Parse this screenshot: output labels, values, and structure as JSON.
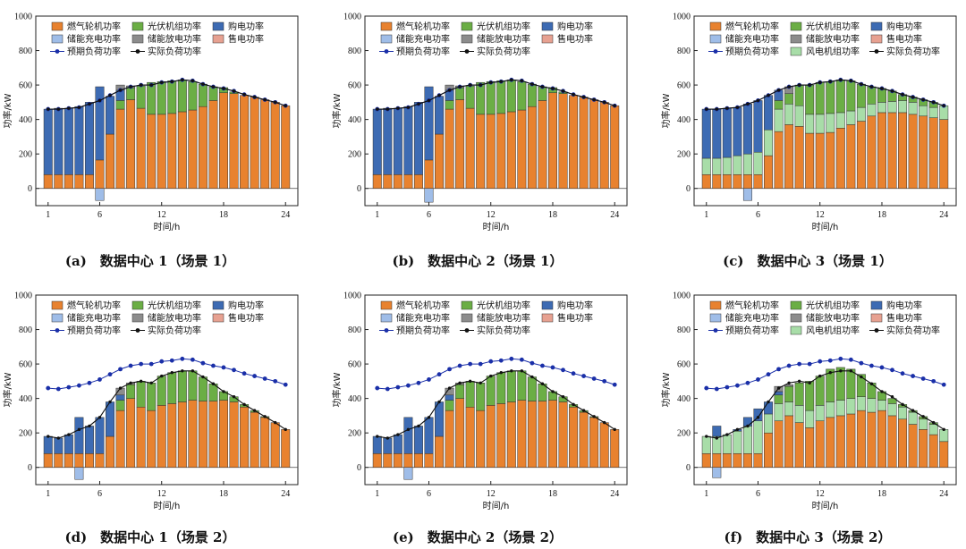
{
  "colors": {
    "gas": "#E8822F",
    "pv": "#6BAE45",
    "buy": "#3D6BB3",
    "charge": "#9FBDE8",
    "discharge": "#8C8C8C",
    "sell": "#E7A191",
    "wind": "#A8DDA8",
    "pred": "#1A2FA8",
    "actual": "#111111"
  },
  "chart_data": [
    {
      "id": "a",
      "type": "stacked-bar-line",
      "title": "(a)　数据中心 1（场景 1）",
      "xlabel": "时间/h",
      "ylabel": "功率/kW",
      "xticks": [
        "1",
        "6",
        "12",
        "18",
        "24"
      ],
      "yticks": [
        "0",
        "200",
        "400",
        "600",
        "800",
        "1000"
      ],
      "ylim": [
        -100,
        1000
      ],
      "legend": [
        "燃气轮机功率",
        "光伏机组功率",
        "购电功率",
        "储能充电功率",
        "储能放电功率",
        "售电功率",
        "预期负荷功率",
        "实际负荷功率"
      ],
      "gas": [
        80,
        80,
        80,
        80,
        80,
        165,
        315,
        460,
        515,
        465,
        430,
        430,
        435,
        445,
        455,
        475,
        510,
        555,
        550,
        540,
        530,
        515,
        500,
        480
      ],
      "pv": [
        0,
        0,
        0,
        0,
        0,
        0,
        0,
        50,
        70,
        130,
        185,
        190,
        190,
        185,
        165,
        130,
        80,
        30,
        10,
        0,
        0,
        0,
        0,
        0
      ],
      "buy": [
        380,
        385,
        385,
        395,
        420,
        425,
        220,
        60,
        0,
        0,
        0,
        0,
        0,
        0,
        0,
        0,
        0,
        0,
        0,
        0,
        0,
        0,
        0,
        0
      ],
      "discharge": [
        0,
        0,
        0,
        0,
        0,
        0,
        0,
        30,
        10,
        0,
        0,
        0,
        0,
        0,
        0,
        0,
        0,
        0,
        0,
        0,
        0,
        0,
        0,
        0
      ],
      "charge": [
        0,
        0,
        0,
        0,
        0,
        -70,
        0,
        0,
        0,
        0,
        0,
        0,
        0,
        0,
        0,
        0,
        0,
        0,
        0,
        0,
        0,
        0,
        0,
        0
      ],
      "predicted": [
        460,
        460,
        465,
        470,
        490,
        510,
        540,
        570,
        590,
        600,
        600,
        615,
        620,
        630,
        625,
        605,
        590,
        580,
        565,
        545,
        530,
        515,
        500,
        480
      ],
      "actual": [
        460,
        460,
        465,
        470,
        490,
        510,
        540,
        570,
        590,
        600,
        600,
        615,
        620,
        630,
        625,
        605,
        590,
        580,
        565,
        545,
        530,
        515,
        500,
        480
      ]
    },
    {
      "id": "b",
      "type": "stacked-bar-line",
      "title": "(b)　数据中心 2（场景 1）",
      "xlabel": "时间/h",
      "ylabel": "功率/kW",
      "xticks": [
        "1",
        "6",
        "12",
        "18",
        "24"
      ],
      "yticks": [
        "0",
        "200",
        "400",
        "600",
        "800",
        "1000"
      ],
      "ylim": [
        -100,
        1000
      ],
      "legend": [
        "燃气轮机功率",
        "光伏机组功率",
        "购电功率",
        "储能充电功率",
        "储能放电功率",
        "售电功率",
        "预期负荷功率",
        "实际负荷功率"
      ],
      "gas": [
        80,
        80,
        80,
        80,
        80,
        165,
        315,
        460,
        515,
        465,
        430,
        430,
        435,
        445,
        455,
        475,
        510,
        555,
        550,
        540,
        530,
        515,
        500,
        480
      ],
      "pv": [
        0,
        0,
        0,
        0,
        0,
        0,
        0,
        50,
        70,
        130,
        185,
        190,
        190,
        185,
        165,
        130,
        80,
        30,
        10,
        0,
        0,
        0,
        0,
        0
      ],
      "buy": [
        380,
        385,
        385,
        395,
        420,
        425,
        220,
        60,
        0,
        0,
        0,
        0,
        0,
        0,
        0,
        0,
        0,
        0,
        0,
        0,
        0,
        0,
        0,
        0
      ],
      "discharge": [
        0,
        0,
        0,
        0,
        0,
        0,
        0,
        30,
        10,
        0,
        0,
        0,
        0,
        0,
        0,
        0,
        0,
        0,
        0,
        0,
        0,
        0,
        0,
        0
      ],
      "charge": [
        0,
        0,
        0,
        0,
        0,
        -80,
        0,
        0,
        0,
        0,
        0,
        0,
        0,
        0,
        0,
        0,
        0,
        0,
        0,
        0,
        0,
        0,
        0,
        0
      ],
      "predicted": [
        460,
        460,
        465,
        470,
        490,
        510,
        540,
        570,
        590,
        600,
        600,
        615,
        620,
        630,
        625,
        605,
        590,
        580,
        565,
        545,
        530,
        515,
        500,
        480
      ],
      "actual": [
        460,
        460,
        465,
        470,
        490,
        510,
        540,
        570,
        590,
        600,
        600,
        615,
        620,
        630,
        625,
        605,
        590,
        580,
        565,
        545,
        530,
        515,
        500,
        480
      ]
    },
    {
      "id": "c",
      "type": "stacked-bar-line",
      "title": "(c)　数据中心 3（场景 1）",
      "xlabel": "时间/h",
      "ylabel": "功率/kW",
      "xticks": [
        "1",
        "6",
        "12",
        "18",
        "24"
      ],
      "yticks": [
        "0",
        "200",
        "400",
        "600",
        "800",
        "1000"
      ],
      "ylim": [
        -100,
        1000
      ],
      "legend": [
        "燃气轮机功率",
        "光伏机组功率",
        "购电功率",
        "储能充电功率",
        "储能放电功率",
        "售电功率",
        "预期负荷功率",
        "风电机组功率",
        "实际负荷功率"
      ],
      "gas": [
        80,
        80,
        80,
        80,
        80,
        80,
        190,
        330,
        370,
        360,
        320,
        320,
        325,
        350,
        370,
        390,
        420,
        440,
        440,
        440,
        430,
        420,
        410,
        400
      ],
      "wind": [
        95,
        95,
        100,
        110,
        120,
        130,
        150,
        130,
        120,
        120,
        110,
        110,
        110,
        90,
        80,
        80,
        70,
        60,
        65,
        70,
        70,
        60,
        60,
        80
      ],
      "pv": [
        0,
        0,
        0,
        0,
        0,
        0,
        0,
        50,
        60,
        120,
        170,
        185,
        185,
        190,
        175,
        135,
        100,
        80,
        60,
        35,
        30,
        35,
        30,
        0
      ],
      "buy": [
        285,
        285,
        285,
        280,
        290,
        300,
        200,
        60,
        0,
        0,
        0,
        0,
        0,
        0,
        0,
        0,
        0,
        0,
        0,
        0,
        0,
        0,
        0,
        0
      ],
      "discharge": [
        0,
        0,
        0,
        0,
        0,
        0,
        0,
        0,
        40,
        0,
        0,
        0,
        0,
        0,
        0,
        0,
        0,
        0,
        0,
        0,
        0,
        0,
        0,
        0
      ],
      "charge": [
        0,
        0,
        0,
        0,
        -70,
        0,
        0,
        0,
        0,
        0,
        0,
        0,
        0,
        0,
        0,
        0,
        0,
        0,
        0,
        0,
        0,
        0,
        0,
        0
      ],
      "predicted": [
        460,
        460,
        465,
        470,
        490,
        510,
        540,
        570,
        590,
        600,
        600,
        615,
        620,
        630,
        625,
        605,
        590,
        580,
        565,
        545,
        530,
        515,
        500,
        480
      ],
      "actual": [
        460,
        460,
        465,
        470,
        490,
        510,
        540,
        570,
        590,
        600,
        600,
        615,
        620,
        630,
        625,
        605,
        590,
        580,
        565,
        545,
        530,
        515,
        500,
        480
      ]
    },
    {
      "id": "d",
      "type": "stacked-bar-line",
      "title": "(d)　数据中心 1（场景 2）",
      "xlabel": "时间/h",
      "ylabel": "功率/kW",
      "xticks": [
        "1",
        "6",
        "12",
        "18",
        "24"
      ],
      "yticks": [
        "0",
        "200",
        "400",
        "600",
        "800",
        "1000"
      ],
      "ylim": [
        -100,
        1000
      ],
      "legend": [
        "燃气轮机功率",
        "光伏机组功率",
        "购电功率",
        "储能充电功率",
        "储能放电功率",
        "售电功率",
        "预期负荷功率",
        "实际负荷功率"
      ],
      "gas": [
        80,
        80,
        80,
        80,
        80,
        80,
        180,
        330,
        400,
        350,
        330,
        360,
        370,
        380,
        390,
        385,
        385,
        390,
        380,
        350,
        320,
        290,
        260,
        220
      ],
      "pv": [
        0,
        0,
        0,
        0,
        0,
        0,
        0,
        60,
        80,
        150,
        160,
        170,
        180,
        180,
        170,
        140,
        100,
        50,
        30,
        15,
        10,
        5,
        0,
        0
      ],
      "buy": [
        100,
        90,
        110,
        210,
        160,
        210,
        200,
        30,
        0,
        0,
        0,
        0,
        0,
        0,
        0,
        0,
        0,
        0,
        0,
        0,
        0,
        0,
        0,
        0
      ],
      "discharge": [
        0,
        0,
        0,
        0,
        0,
        0,
        0,
        40,
        10,
        0,
        0,
        0,
        0,
        0,
        0,
        0,
        0,
        0,
        0,
        0,
        0,
        0,
        0,
        0
      ],
      "charge": [
        0,
        0,
        0,
        -70,
        0,
        0,
        0,
        0,
        0,
        0,
        0,
        0,
        0,
        0,
        0,
        0,
        0,
        0,
        0,
        0,
        0,
        0,
        0,
        0
      ],
      "predicted": [
        460,
        455,
        465,
        475,
        490,
        510,
        540,
        570,
        590,
        600,
        600,
        615,
        620,
        630,
        625,
        605,
        590,
        580,
        565,
        545,
        530,
        515,
        500,
        480
      ],
      "actual": [
        180,
        170,
        190,
        220,
        240,
        290,
        380,
        460,
        490,
        500,
        490,
        530,
        550,
        560,
        560,
        525,
        485,
        440,
        410,
        365,
        330,
        295,
        260,
        220
      ]
    },
    {
      "id": "e",
      "type": "stacked-bar-line",
      "title": "(e)　数据中心 2（场景 2）",
      "xlabel": "时间/h",
      "ylabel": "功率/kW",
      "xticks": [
        "1",
        "6",
        "12",
        "18",
        "24"
      ],
      "yticks": [
        "0",
        "200",
        "400",
        "600",
        "800",
        "1000"
      ],
      "ylim": [
        -100,
        1000
      ],
      "legend": [
        "燃气轮机功率",
        "光伏机组功率",
        "购电功率",
        "储能充电功率",
        "储能放电功率",
        "售电功率",
        "预期负荷功率",
        "实际负荷功率"
      ],
      "gas": [
        80,
        80,
        80,
        80,
        80,
        80,
        180,
        330,
        400,
        350,
        330,
        360,
        370,
        380,
        390,
        385,
        385,
        390,
        380,
        350,
        320,
        290,
        260,
        220
      ],
      "pv": [
        0,
        0,
        0,
        0,
        0,
        0,
        0,
        60,
        80,
        150,
        160,
        170,
        180,
        180,
        170,
        140,
        100,
        50,
        30,
        15,
        10,
        5,
        0,
        0
      ],
      "buy": [
        100,
        90,
        110,
        210,
        160,
        210,
        200,
        30,
        0,
        0,
        0,
        0,
        0,
        0,
        0,
        0,
        0,
        0,
        0,
        0,
        0,
        0,
        0,
        0
      ],
      "discharge": [
        0,
        0,
        0,
        0,
        0,
        0,
        0,
        40,
        10,
        0,
        0,
        0,
        0,
        0,
        0,
        0,
        0,
        0,
        0,
        0,
        0,
        0,
        0,
        0
      ],
      "charge": [
        0,
        0,
        0,
        -70,
        0,
        0,
        0,
        0,
        0,
        0,
        0,
        0,
        0,
        0,
        0,
        0,
        0,
        0,
        0,
        0,
        0,
        0,
        0,
        0
      ],
      "predicted": [
        460,
        455,
        465,
        475,
        490,
        510,
        540,
        570,
        590,
        600,
        600,
        615,
        620,
        630,
        625,
        605,
        590,
        580,
        565,
        545,
        530,
        515,
        500,
        480
      ],
      "actual": [
        180,
        170,
        190,
        220,
        240,
        290,
        380,
        460,
        490,
        500,
        490,
        530,
        550,
        560,
        560,
        525,
        485,
        440,
        410,
        365,
        330,
        295,
        260,
        220
      ]
    },
    {
      "id": "f",
      "type": "stacked-bar-line",
      "title": "(f)　数据中心 3（场景 2）",
      "xlabel": "时间/h",
      "ylabel": "功率/kW",
      "xticks": [
        "1",
        "6",
        "12",
        "18",
        "24"
      ],
      "yticks": [
        "0",
        "200",
        "400",
        "600",
        "800",
        "1000"
      ],
      "ylim": [
        -100,
        1000
      ],
      "legend": [
        "燃气轮机功率",
        "光伏机组功率",
        "购电功率",
        "储能充电功率",
        "储能放电功率",
        "售电功率",
        "预期负荷功率",
        "风电机组功率",
        "实际负荷功率"
      ],
      "gas": [
        80,
        80,
        80,
        80,
        80,
        80,
        200,
        270,
        300,
        260,
        230,
        270,
        290,
        300,
        310,
        330,
        320,
        330,
        300,
        280,
        250,
        220,
        190,
        150
      ],
      "wind": [
        100,
        100,
        110,
        130,
        160,
        190,
        110,
        100,
        80,
        100,
        100,
        90,
        90,
        90,
        90,
        80,
        80,
        60,
        70,
        70,
        70,
        60,
        60,
        70
      ],
      "pv": [
        0,
        0,
        0,
        0,
        0,
        0,
        0,
        50,
        90,
        130,
        170,
        170,
        190,
        190,
        170,
        130,
        90,
        50,
        30,
        15,
        10,
        15,
        10,
        0
      ],
      "buy": [
        0,
        60,
        0,
        10,
        50,
        70,
        70,
        20,
        0,
        0,
        0,
        0,
        0,
        0,
        0,
        0,
        0,
        0,
        0,
        0,
        0,
        0,
        0,
        0
      ],
      "discharge": [
        0,
        0,
        0,
        0,
        0,
        0,
        0,
        30,
        10,
        0,
        0,
        0,
        0,
        0,
        0,
        0,
        0,
        0,
        0,
        0,
        0,
        0,
        0,
        0
      ],
      "charge": [
        0,
        -60,
        0,
        0,
        0,
        0,
        0,
        0,
        0,
        0,
        0,
        0,
        0,
        0,
        0,
        0,
        0,
        0,
        0,
        0,
        0,
        0,
        0,
        0
      ],
      "predicted": [
        460,
        455,
        465,
        475,
        490,
        510,
        540,
        570,
        590,
        600,
        600,
        615,
        620,
        630,
        625,
        605,
        590,
        580,
        565,
        545,
        530,
        515,
        500,
        480
      ],
      "actual": [
        180,
        170,
        190,
        220,
        240,
        290,
        380,
        460,
        490,
        500,
        490,
        530,
        550,
        560,
        560,
        525,
        485,
        440,
        410,
        365,
        330,
        295,
        260,
        220
      ]
    }
  ]
}
